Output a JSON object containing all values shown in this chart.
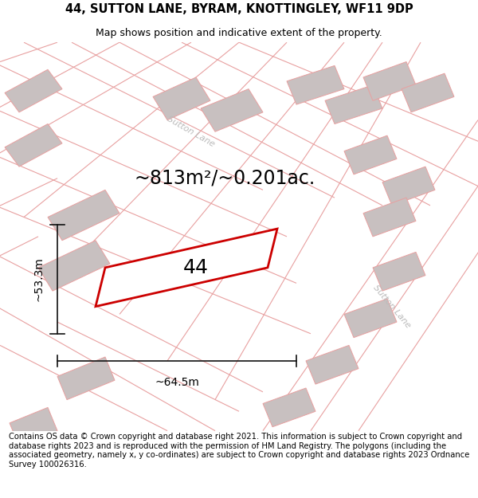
{
  "title_line1": "44, SUTTON LANE, BYRAM, KNOTTINGLEY, WF11 9DP",
  "title_line2": "Map shows position and indicative extent of the property.",
  "area_label": "~813m²/~0.201ac.",
  "plot_number": "44",
  "dim_height": "~53.3m",
  "dim_width": "~64.5m",
  "road_label1": "Sutton Lane",
  "road_label2": "Sutton Lane",
  "footer_text": "Contains OS data © Crown copyright and database right 2021. This information is subject to Crown copyright and database rights 2023 and is reproduced with the permission of HM Land Registry. The polygons (including the associated geometry, namely x, y co-ordinates) are subject to Crown copyright and database rights 2023 Ordnance Survey 100026316.",
  "bg_color": "#ffffff",
  "map_bg": "#ffffff",
  "road_color": "#e8a0a0",
  "building_color": "#c8c0c0",
  "plot_edge_color": "#cc0000",
  "plot_fill_color": "#ffffff",
  "dim_line_color": "#111111",
  "title_fontsize": 10.5,
  "subtitle_fontsize": 9,
  "area_fontsize": 17,
  "plot_num_fontsize": 18,
  "dim_fontsize": 10,
  "road_fontsize": 8,
  "footer_fontsize": 7.2
}
